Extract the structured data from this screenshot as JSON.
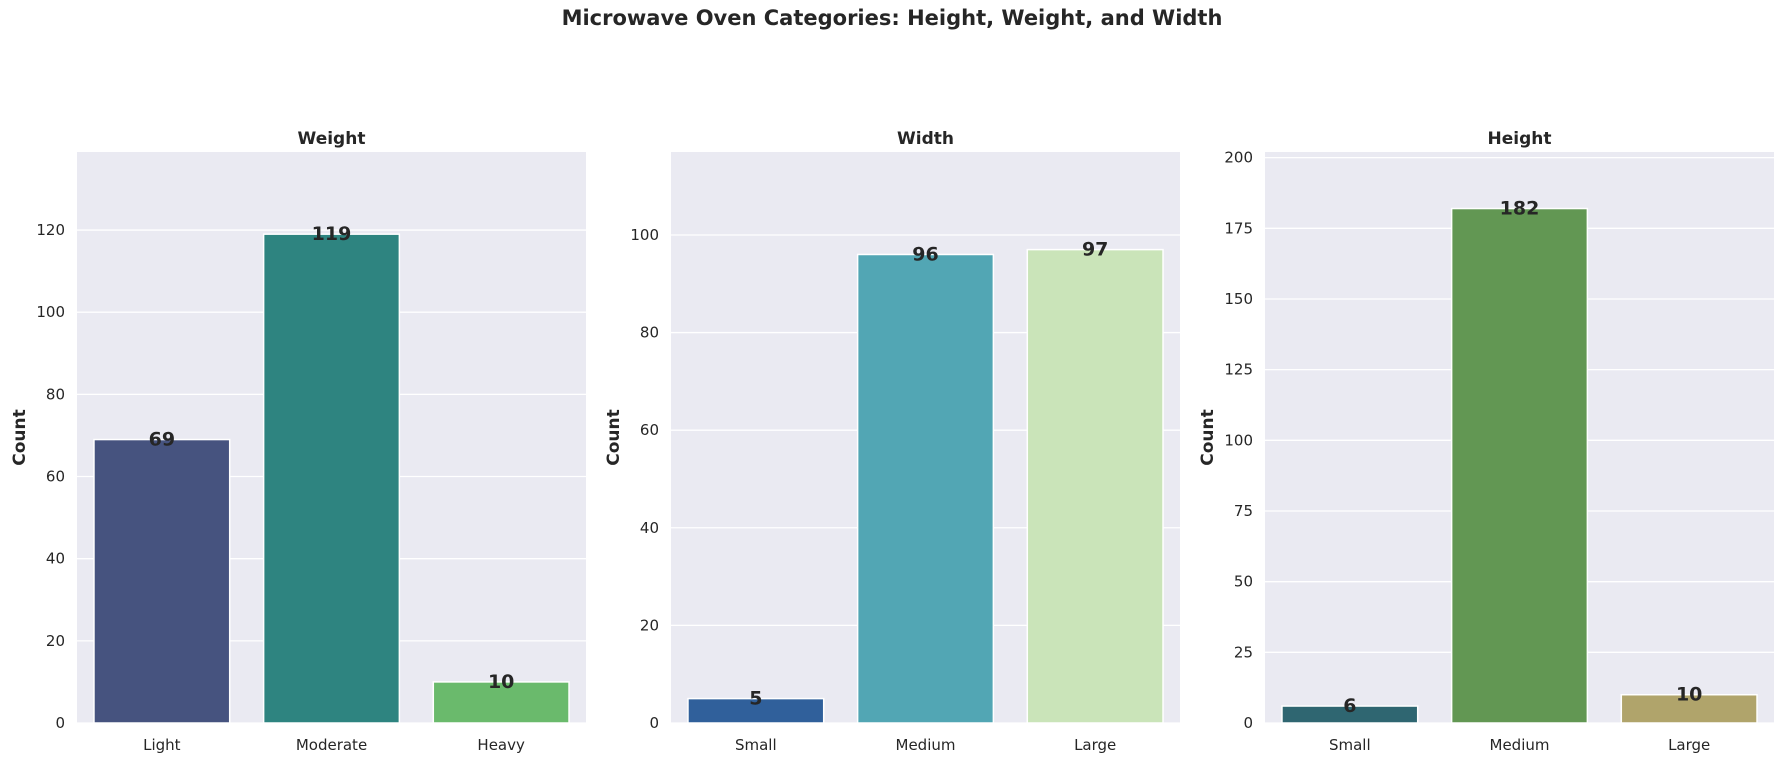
{
  "figure": {
    "title": "Microwave Oven Categories: Height, Weight, and Width"
  },
  "chart_data": [
    {
      "type": "bar",
      "title": "Weight",
      "xlabel": "",
      "ylabel": "Count",
      "categories": [
        "Light",
        "Moderate",
        "Heavy"
      ],
      "values": [
        69,
        119,
        10
      ],
      "colors": [
        "#46537f",
        "#2e8480",
        "#6aba6c"
      ],
      "ylim": [
        0,
        139
      ],
      "yticks": [
        0,
        20,
        40,
        60,
        80,
        100,
        120
      ],
      "grid": true
    },
    {
      "type": "bar",
      "title": "Width",
      "xlabel": "",
      "ylabel": "Count",
      "categories": [
        "Small",
        "Medium",
        "Large"
      ],
      "values": [
        5,
        96,
        97
      ],
      "colors": [
        "#30609b",
        "#52a6b4",
        "#cae4b9"
      ],
      "ylim": [
        0,
        117
      ],
      "yticks": [
        0,
        20,
        40,
        60,
        80,
        100
      ],
      "grid": true
    },
    {
      "type": "bar",
      "title": "Height",
      "xlabel": "",
      "ylabel": "Count",
      "categories": [
        "Small",
        "Medium",
        "Large"
      ],
      "values": [
        6,
        182,
        10
      ],
      "colors": [
        "#2f6671",
        "#629753",
        "#b0a46b"
      ],
      "ylim": [
        0,
        202
      ],
      "yticks": [
        0,
        25,
        50,
        75,
        100,
        125,
        150,
        175,
        200
      ],
      "grid": true
    }
  ]
}
